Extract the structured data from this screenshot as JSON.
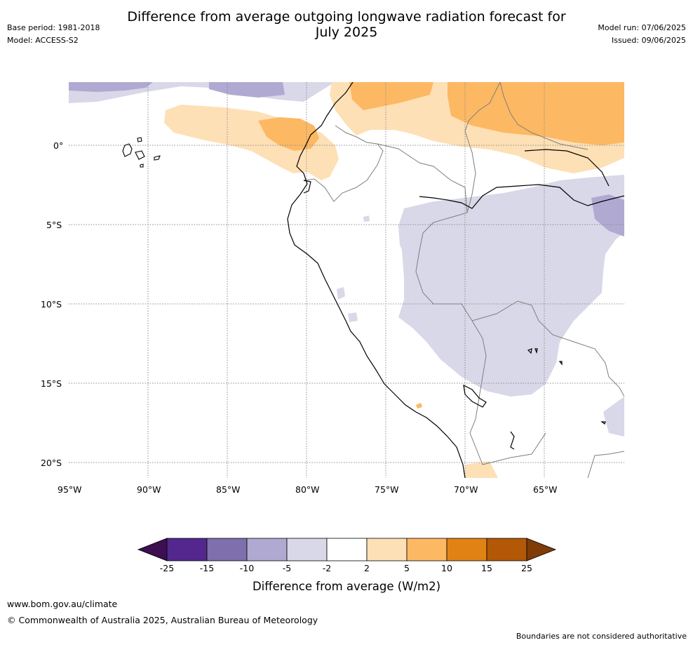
{
  "header": {
    "title_line1": "Difference from average outgoing longwave radiation forecast for",
    "title_line2": "July 2025",
    "base_period": "Base period: 1981-2018",
    "model": "Model: ACCESS-S2",
    "model_run": "Model run: 07/06/2025",
    "issued": "Issued: 09/06/2025"
  },
  "map": {
    "lat_labels": [
      "0°",
      "5°S",
      "10°S",
      "15°S",
      "20°S"
    ],
    "lon_labels": [
      "95°W",
      "90°W",
      "85°W",
      "80°W",
      "75°W",
      "70°W",
      "65°W"
    ],
    "gridline_color": "#8c8c8c",
    "coastline_color": "#000000",
    "border_color": "#7f7f7f"
  },
  "colorbar": {
    "tick_labels": [
      "-25",
      "-15",
      "-10",
      "-5",
      "-2",
      "2",
      "5",
      "10",
      "15",
      "25"
    ],
    "colors": [
      "#3b0f50",
      "#54278f",
      "#7f6fac",
      "#b0a9d2",
      "#d8d8e9",
      "#ffffff",
      "#fee0b6",
      "#fdb863",
      "#e08214",
      "#b35806",
      "#7f3b08"
    ],
    "label": "Difference from average (W/m2)"
  },
  "footer": {
    "website": "www.bom.gov.au/climate",
    "copyright": "© Commonwealth of Australia 2025, Australian Bureau of Meteorology",
    "disclaimer": "Boundaries are not considered authoritative"
  }
}
